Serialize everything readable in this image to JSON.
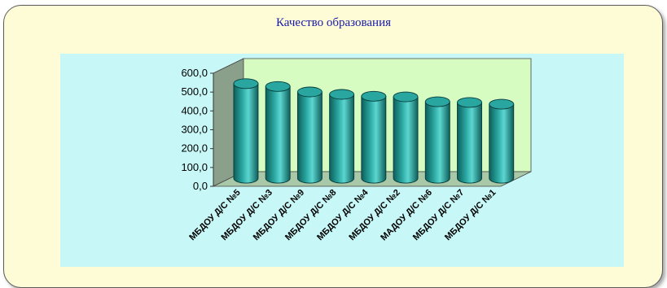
{
  "chart_data": {
    "type": "bar",
    "title": "Качество образования",
    "categories": [
      "МБДОУ Д/С №5",
      "МБДОУ Д/С №3",
      "МБДОУ Д/С №9",
      "МБДОУ Д/С №8",
      "МБДОУ Д/С №4",
      "МБДОУ Д/С №2",
      "МАДОУ Д/С №6",
      "МБДОУ Д/С №7",
      "МБДОУ Д/С №1"
    ],
    "values": [
      502,
      487,
      458,
      445,
      435,
      432,
      406,
      402,
      393
    ],
    "y_ticks": [
      "0,0",
      "100,0",
      "200,0",
      "300,0",
      "400,0",
      "500,0",
      "600,0"
    ],
    "ylim": [
      0,
      600
    ],
    "grid": false,
    "legend": "none",
    "colors": {
      "bar": "#2aa6a0",
      "bar_dark": "#0e5e5a",
      "bar_top": "#5cd6d0",
      "back_wall": "#d6fcc2",
      "side_wall": "#8aa08a",
      "plot_bg": "#c8f7f7",
      "title": "#1a1aa8"
    }
  }
}
